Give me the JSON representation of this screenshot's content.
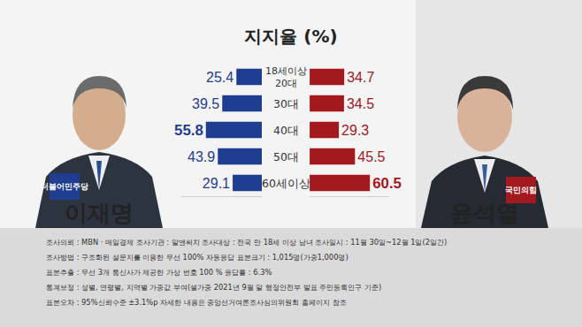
{
  "chart_data": {
    "type": "bar",
    "orientation": "horizontal",
    "title": "지지율 (%)",
    "categories": [
      "18세이상\n20대",
      "30대",
      "40대",
      "50대",
      "60세이상"
    ],
    "series": [
      {
        "name": "이재명",
        "color": "#1f3d91",
        "values": [
          25.4,
          39.5,
          55.8,
          43.9,
          29.1
        ]
      },
      {
        "name": "윤석열",
        "color": "#a3191e",
        "values": [
          34.7,
          34.5,
          29.3,
          45.5,
          60.5
        ]
      }
    ],
    "xlim": [
      0,
      80
    ],
    "data_labels": true,
    "tick_labels": false,
    "grid": false
  },
  "parties": [
    "더불어민주당",
    "국민의힘"
  ],
  "footer": [
    "조사의뢰 : MBN · 매일경제     조사기관 : 알앤써치     조사대상 : 전국 만 18세 이상 남녀     조사일시 : 11월 30일~12월 1일(2일간)",
    "조사방법 : 구조화된 설문지를 이용한 무선 100% 자동응답     표본크기 : 1,015명(가중1,000명)",
    "표본추출 : 무선 3개 통신사가 제공한 가상 번호 100 %     응답률 : 6.3%",
    "통계보정 : 성별, 연령별, 지역별 가중값 부여(셀가중 2021년 9월 말 행정안전부 발표 주민등록인구 기준)",
    "표본오차 : 95%신뢰수준 ±3.1%p     자세한 내용은 중앙선거여론조사심의위원회 홈페이지 참조"
  ]
}
